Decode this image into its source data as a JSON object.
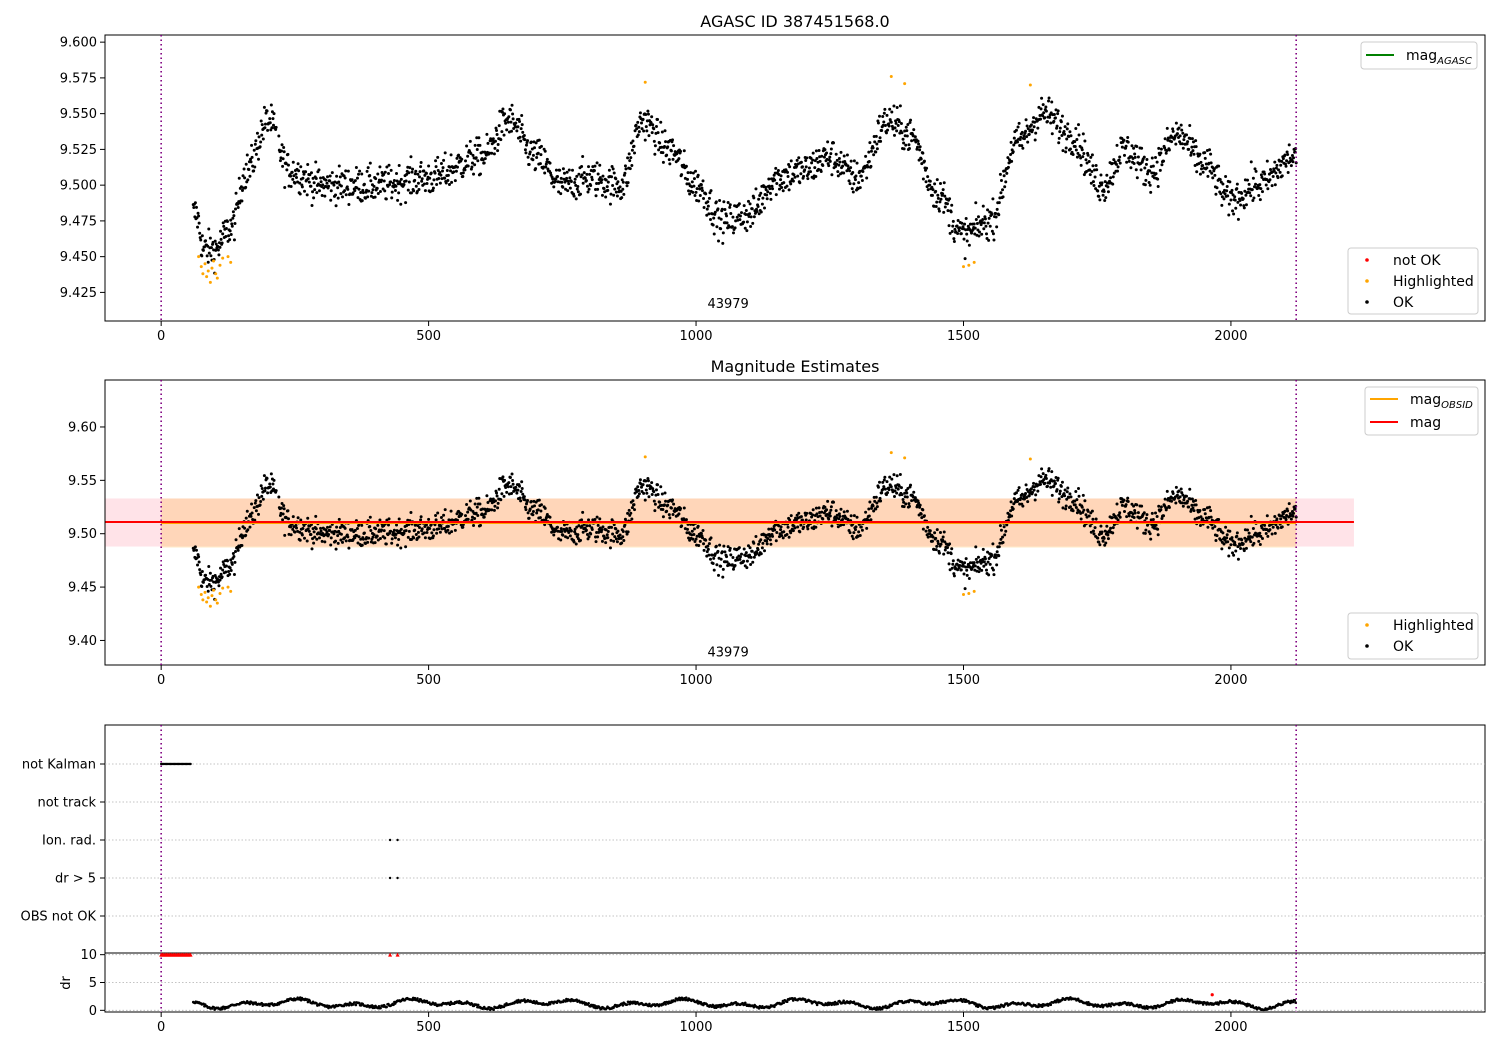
{
  "figure_title": "AGASC ID 387451568.0",
  "chart_data": [
    {
      "type": "scatter",
      "title": "AGASC ID 387451568.0",
      "xlabel": "",
      "ylabel": "",
      "xlim": [
        -105,
        2475
      ],
      "ylim": [
        9.405,
        9.605
      ],
      "xticks": [
        0,
        500,
        1000,
        1500,
        2000
      ],
      "yticks": [
        9.425,
        9.45,
        9.475,
        9.5,
        9.525,
        9.55,
        9.575,
        9.6
      ],
      "ytick_labels": [
        "9.425",
        "9.450",
        "9.475",
        "9.500",
        "9.525",
        "9.550",
        "9.575",
        "9.600"
      ],
      "vlines": [
        0,
        2122
      ],
      "annotation": {
        "x": 1060,
        "y": 9.414,
        "text": "43979"
      },
      "legend_lines": [
        {
          "label": "mag",
          "sub": "AGASC",
          "color": "#008000"
        }
      ],
      "legend_markers": [
        {
          "label": "not OK",
          "color": "#ff0000"
        },
        {
          "label": "Highlighted",
          "color": "#ffa500"
        },
        {
          "label": "OK",
          "color": "#000000"
        }
      ],
      "legend_placement": [
        "top-right",
        "bottom-right"
      ],
      "series": [
        {
          "label_ref": 2,
          "values_ref": "ok"
        },
        {
          "label_ref": 1,
          "values_ref": "highlighted"
        }
      ],
      "trend_x": [
        65,
        80,
        100,
        130,
        160,
        200,
        240,
        300,
        400,
        500,
        600,
        650,
        700,
        750,
        800,
        860,
        900,
        950,
        1000,
        1050,
        1100,
        1150,
        1200,
        1250,
        1300,
        1360,
        1400,
        1450,
        1500,
        1550,
        1600,
        1650,
        1700,
        1760,
        1800,
        1850,
        1900,
        1950,
        2000,
        2050,
        2122
      ],
      "trend_y": [
        9.48,
        9.455,
        9.455,
        9.47,
        9.51,
        9.545,
        9.51,
        9.5,
        9.5,
        9.505,
        9.52,
        9.545,
        9.52,
        9.5,
        9.505,
        9.5,
        9.545,
        9.525,
        9.5,
        9.475,
        9.48,
        9.505,
        9.51,
        9.52,
        9.505,
        9.545,
        9.535,
        9.495,
        9.465,
        9.475,
        9.53,
        9.55,
        9.535,
        9.5,
        9.525,
        9.51,
        9.535,
        9.515,
        9.49,
        9.5,
        9.52
      ],
      "highlighted": {
        "x": [
          70,
          75,
          78,
          82,
          85,
          88,
          92,
          95,
          98,
          102,
          105,
          110,
          115,
          125,
          130,
          905,
          1365,
          1390,
          1500,
          1510,
          1520,
          1625
        ],
        "y": [
          9.45,
          9.443,
          9.438,
          9.445,
          9.436,
          9.44,
          9.432,
          9.442,
          9.447,
          9.438,
          9.435,
          9.444,
          9.449,
          9.45,
          9.446,
          9.572,
          9.576,
          9.571,
          9.443,
          9.444,
          9.446,
          9.57
        ]
      }
    },
    {
      "type": "scatter",
      "title": "Magnitude Estimates",
      "xlabel": "",
      "ylabel": "",
      "xlim": [
        -105,
        2475
      ],
      "ylim": [
        9.377,
        9.644
      ],
      "xticks": [
        0,
        500,
        1000,
        1500,
        2000
      ],
      "yticks": [
        9.4,
        9.45,
        9.5,
        9.55,
        9.6
      ],
      "ytick_labels": [
        "9.40",
        "9.45",
        "9.50",
        "9.55",
        "9.60"
      ],
      "vlines": [
        0,
        2122
      ],
      "annotation": {
        "x": 1060,
        "y": 9.385,
        "text": "43979"
      },
      "mag_obsid": {
        "value": 9.51,
        "x": [
          0,
          2122
        ],
        "band": [
          9.487,
          9.533
        ],
        "color": "#ffa500"
      },
      "mag": {
        "value": 9.511,
        "x": [
          -105,
          2230
        ],
        "band": [
          9.488,
          9.533
        ],
        "color": "#ff0000"
      },
      "legend_lines": [
        {
          "label": "mag",
          "sub": "OBSID",
          "color": "#ffa500"
        },
        {
          "label": "mag",
          "sub": "",
          "color": "#ff0000"
        }
      ],
      "legend_markers": [
        {
          "label": "Highlighted",
          "color": "#ffa500"
        },
        {
          "label": "OK",
          "color": "#000000"
        }
      ],
      "legend_placement": [
        "top-right",
        "bottom-right"
      ]
    },
    {
      "type": "scatter",
      "title": "",
      "xlabel": "",
      "ylabel": "",
      "xlim": [
        -105,
        2475
      ],
      "categories": [
        "not Kalman",
        "not track",
        "Ion. rad.",
        "dr > 5",
        "OBS not OK"
      ],
      "flags": {
        "not Kalman": {
          "x_from": 0,
          "x_to": 55,
          "step": 2.5
        },
        "not track": {
          "x_from": null,
          "x_to": null,
          "step": 0
        },
        "Ion. rad.": {
          "x_from": 428,
          "x_to": 442,
          "step": 14
        },
        "dr > 5": {
          "x_from": 428,
          "x_to": 442,
          "step": 14
        },
        "OBS not OK": {
          "x_from": null,
          "x_to": null,
          "step": 0
        }
      },
      "vlines": [
        0,
        2122
      ]
    },
    {
      "type": "scatter",
      "title": "",
      "xlabel": "",
      "ylabel": "dr",
      "xlim": [
        -105,
        2475
      ],
      "ylim": [
        -0.3,
        10.3
      ],
      "xticks": [
        0,
        500,
        1000,
        1500,
        2000
      ],
      "yticks": [
        0,
        5,
        10
      ],
      "ytick_labels": [
        "0",
        "5",
        "10"
      ],
      "clipped_red": {
        "x_from": 0,
        "x_to": 55,
        "step": 2.5,
        "extra_x": [
          428,
          442
        ],
        "y": 10
      },
      "outlier": {
        "x": 1965,
        "y": 2.8
      },
      "vlines": [
        0,
        2122
      ]
    }
  ],
  "sampling": {
    "x_start": 60,
    "x_end": 2122,
    "step": 1.0,
    "gap_x": [
      215,
      220
    ]
  }
}
